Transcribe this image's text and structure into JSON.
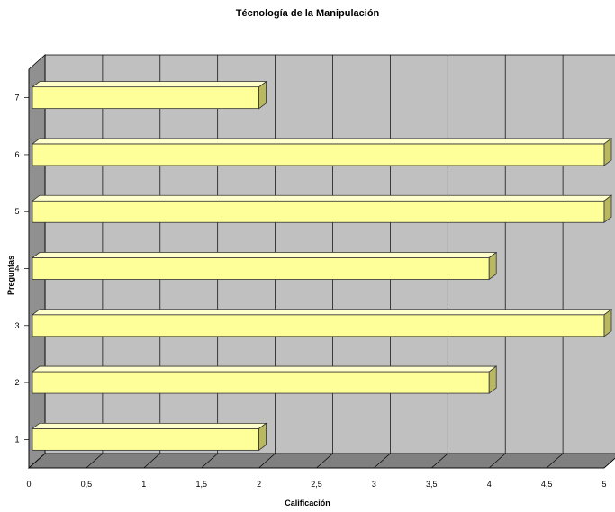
{
  "chart_data": {
    "type": "bar",
    "orientation": "horizontal",
    "three_d": true,
    "title": "Técnología de la Manipulación",
    "xlabel": "Calificación",
    "ylabel": "Preguntas",
    "categories": [
      "1",
      "2",
      "3",
      "4",
      "5",
      "6",
      "7"
    ],
    "values": [
      2,
      4,
      5,
      4,
      5,
      5,
      2
    ],
    "xlim": [
      0,
      5
    ],
    "xticks": [
      "0",
      "0,5",
      "1",
      "1,5",
      "2",
      "2,5",
      "3",
      "3,5",
      "4",
      "4,5",
      "5"
    ],
    "grid": true,
    "legend": "none",
    "colors": {
      "bar_front": "#ffff99",
      "bar_top": "#ffffcc",
      "bar_side": "#b8b860",
      "bar_edge": "#333333",
      "wall": "#c0c0c0",
      "floor": "#808080",
      "side_wall": "#909090",
      "gridline": "#000000"
    }
  }
}
